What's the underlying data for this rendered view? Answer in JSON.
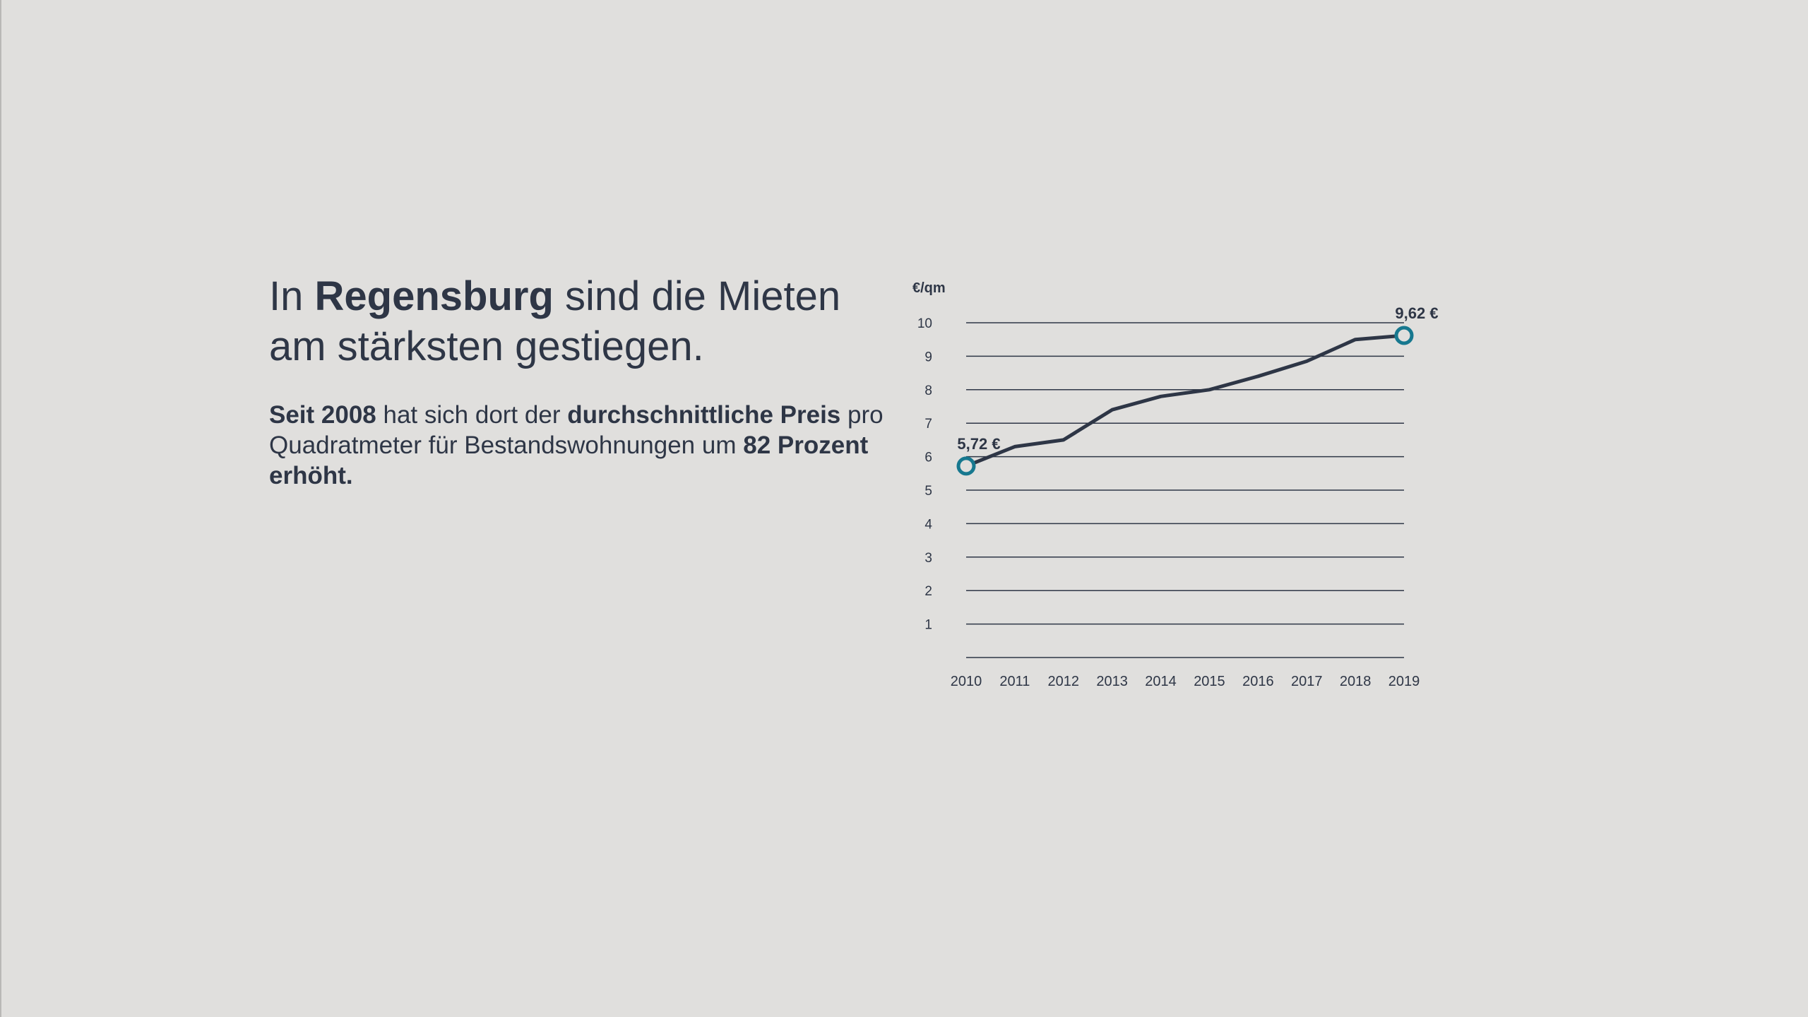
{
  "headline": {
    "part1": "In ",
    "bold": "Regensburg",
    "part2": " sind die Mieten am stärksten gestiegen."
  },
  "body": {
    "b1": "Seit 2008",
    "t1": " hat sich dort der ",
    "b2": "durchschnittliche Preis",
    "t2": " pro Quadratmeter für Bestandswohnungen um ",
    "b3": "82 Prozent erhöht."
  },
  "colors": {
    "background": "#e0dfdd",
    "line": "#2e3646",
    "marker": "#17788f"
  },
  "chart_data": {
    "type": "line",
    "ylabel": "€/qm",
    "x": [
      2010,
      2011,
      2012,
      2013,
      2014,
      2015,
      2016,
      2017,
      2018,
      2019
    ],
    "values": [
      5.72,
      6.3,
      6.5,
      7.4,
      7.8,
      8.0,
      8.4,
      8.85,
      9.5,
      9.62
    ],
    "ylim": [
      0,
      10
    ],
    "yticks": [
      1,
      2,
      3,
      4,
      5,
      6,
      7,
      8,
      9,
      10
    ],
    "grid": true,
    "annotations": [
      {
        "x": 2010,
        "label": "5,72 €"
      },
      {
        "x": 2019,
        "label": "9,62 €"
      }
    ]
  }
}
